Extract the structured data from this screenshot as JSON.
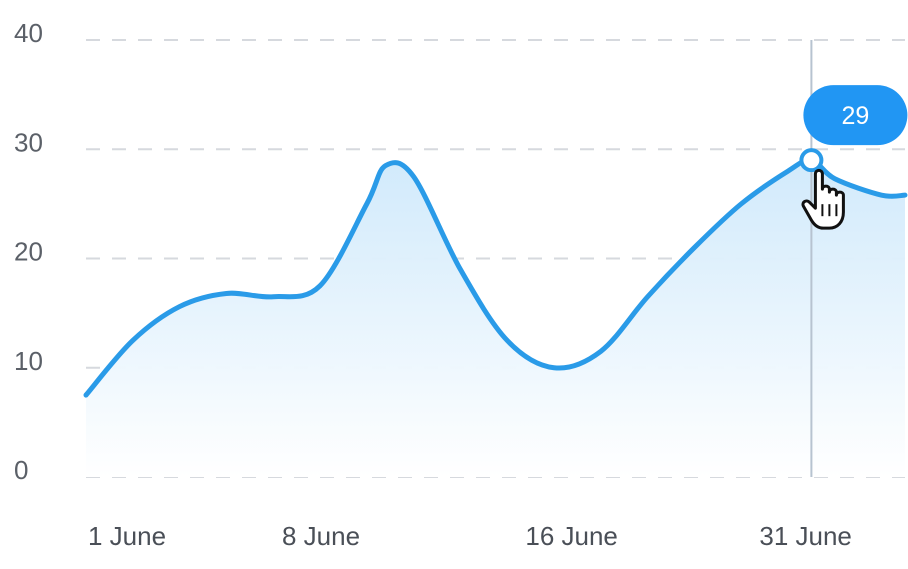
{
  "chart_data": {
    "type": "area",
    "x_ticks": [
      "1 June",
      "8 June",
      "16 June",
      "31 June"
    ],
    "y_ticks": [
      "0",
      "10",
      "20",
      "30",
      "40"
    ],
    "ylim": [
      0,
      40
    ],
    "grid": true,
    "series": [
      {
        "color": "#2a9be8",
        "points": [
          [
            0.0,
            7.5
          ],
          [
            0.5,
            12.5
          ],
          [
            1.0,
            15.6
          ],
          [
            1.5,
            16.8
          ],
          [
            2.0,
            16.5
          ],
          [
            2.5,
            17.5
          ],
          [
            3.0,
            25.0
          ],
          [
            3.2,
            28.5
          ],
          [
            3.5,
            27.5
          ],
          [
            4.0,
            19.0
          ],
          [
            4.5,
            12.5
          ],
          [
            5.0,
            10.0
          ],
          [
            5.5,
            11.5
          ],
          [
            6.0,
            16.5
          ],
          [
            6.5,
            21.0
          ],
          [
            7.0,
            25.0
          ],
          [
            7.5,
            28.0
          ],
          [
            7.75,
            29.0
          ],
          [
            8.0,
            27.3
          ],
          [
            8.5,
            25.8
          ],
          [
            8.75,
            25.8
          ]
        ]
      }
    ],
    "highlight": {
      "x": 7.75,
      "value": 29,
      "label": "29"
    }
  },
  "icons": {
    "cursor": "hand-pointer-icon"
  }
}
